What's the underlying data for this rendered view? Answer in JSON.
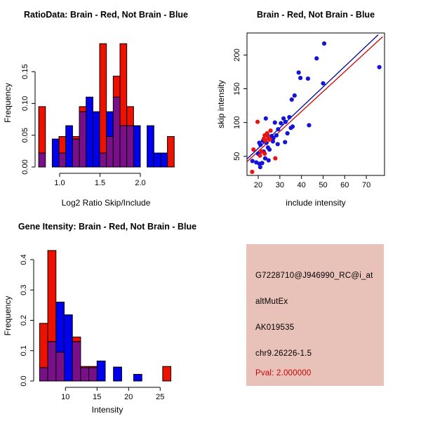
{
  "colors": {
    "red": "#ee1100",
    "blue": "#0000ee",
    "overlap_purple": "#7a0f8a",
    "scatter_red_point": "#e81414",
    "scatter_blue_point": "#1414d8",
    "fit_line_red": "#d40000",
    "fit_line_blue": "#0000a0",
    "axis": "#000000",
    "info_box_bg": "#e8c2b9",
    "pval_red": "#cc0000",
    "text": "#000000"
  },
  "chart_data": [
    {
      "id": "ratio-histogram",
      "type": "bar",
      "title": "RatioData: Brain - Red, Not Brain - Blue",
      "xlabel": "Log2 Ratio Skip/Include",
      "ylabel": "Frequency",
      "legend_note": "Brain histogram red, Not Brain histogram blue, overlap purple",
      "xlim": [
        0.713,
        2.435
      ],
      "ylim": [
        0,
        0.202
      ],
      "grid": false,
      "xticks": [
        {
          "v": 1.0,
          "label": "1.0"
        },
        {
          "v": 1.5,
          "label": "1.5"
        },
        {
          "v": 2.0,
          "label": "2.0"
        }
      ],
      "yticks": [
        {
          "v": 0.0,
          "label": "0.00"
        },
        {
          "v": 0.05,
          "label": "0.05"
        },
        {
          "v": 0.1,
          "label": "0.10"
        },
        {
          "v": 0.15,
          "label": "0.15"
        }
      ],
      "bin_width": 0.084,
      "bars": [
        {
          "x0": 0.74,
          "red": 0.095,
          "blue": 0.022
        },
        {
          "x0": 0.824,
          "red": 0,
          "blue": 0
        },
        {
          "x0": 0.908,
          "red": 0,
          "blue": 0.044
        },
        {
          "x0": 0.992,
          "red": 0.048,
          "blue": 0.022
        },
        {
          "x0": 1.076,
          "red": 0,
          "blue": 0.065
        },
        {
          "x0": 1.16,
          "red": 0.048,
          "blue": 0.044
        },
        {
          "x0": 1.244,
          "red": 0.095,
          "blue": 0.087
        },
        {
          "x0": 1.328,
          "red": 0,
          "blue": 0.11
        },
        {
          "x0": 1.412,
          "red": 0,
          "blue": 0.087
        },
        {
          "x0": 1.496,
          "red": 0.194,
          "blue": 0.022
        },
        {
          "x0": 1.58,
          "red": 0.048,
          "blue": 0.087
        },
        {
          "x0": 1.664,
          "red": 0.143,
          "blue": 0.11
        },
        {
          "x0": 1.748,
          "red": 0.194,
          "blue": 0.065
        },
        {
          "x0": 1.832,
          "red": 0.095,
          "blue": 0.065
        },
        {
          "x0": 1.916,
          "red": 0,
          "blue": 0.065
        },
        {
          "x0": 2.0,
          "red": 0,
          "blue": 0
        },
        {
          "x0": 2.084,
          "red": 0,
          "blue": 0.065
        },
        {
          "x0": 2.168,
          "red": 0,
          "blue": 0.022
        },
        {
          "x0": 2.252,
          "red": 0,
          "blue": 0.022
        },
        {
          "x0": 2.336,
          "red": 0.048,
          "blue": 0
        }
      ]
    },
    {
      "id": "scatter",
      "type": "scatter",
      "title": "Brain - Red, Not Brain - Blue",
      "xlabel": "include intensity",
      "ylabel": "skip intensity",
      "xlim": [
        14.8,
        78.4
      ],
      "ylim": [
        21.7,
        232.6
      ],
      "grid": false,
      "box": true,
      "xticks": [
        {
          "v": 20,
          "label": "20"
        },
        {
          "v": 30,
          "label": "30"
        },
        {
          "v": 40,
          "label": "40"
        },
        {
          "v": 50,
          "label": "50"
        },
        {
          "v": 60,
          "label": "60"
        },
        {
          "v": 70,
          "label": "70"
        }
      ],
      "yticks": [
        {
          "v": 50,
          "label": "50"
        },
        {
          "v": 100,
          "label": "100"
        },
        {
          "v": 150,
          "label": "150"
        },
        {
          "v": 200,
          "label": "200"
        }
      ],
      "series": [
        {
          "name": "Not Brain",
          "color_key": "scatter_blue_point",
          "points": [
            [
              50.5,
              217
            ],
            [
              47,
              195
            ],
            [
              76,
              182
            ],
            [
              38.7,
              174
            ],
            [
              39.5,
              166
            ],
            [
              43,
              165
            ],
            [
              50,
              158
            ],
            [
              36.8,
              140
            ],
            [
              35.5,
              134
            ],
            [
              34.4,
              108
            ],
            [
              31.7,
              106
            ],
            [
              23.5,
              106
            ],
            [
              43.5,
              96
            ],
            [
              27.7,
              100
            ],
            [
              30.5,
              99
            ],
            [
              32.6,
              101
            ],
            [
              35.9,
              94
            ],
            [
              35.1,
              92
            ],
            [
              29.2,
              90
            ],
            [
              33.5,
              84
            ],
            [
              26.2,
              80
            ],
            [
              28.4,
              81
            ],
            [
              24.2,
              82
            ],
            [
              27,
              77
            ],
            [
              26.8,
              72
            ],
            [
              22.2,
              73
            ],
            [
              23.8,
              70
            ],
            [
              20.5,
              70
            ],
            [
              21,
              67
            ],
            [
              29,
              68
            ],
            [
              32.4,
              71
            ],
            [
              24.5,
              63
            ],
            [
              25.2,
              60
            ],
            [
              22.5,
              57
            ],
            [
              19.9,
              54
            ],
            [
              23.2,
              47
            ],
            [
              17.3,
              43
            ],
            [
              19.1,
              41
            ],
            [
              20.5,
              39
            ],
            [
              20.9,
              34
            ],
            [
              21.8,
              40
            ],
            [
              24.8,
              44
            ]
          ]
        },
        {
          "name": "Brain",
          "color_key": "scatter_red_point",
          "points": [
            [
              19.7,
              101
            ],
            [
              25.7,
              88
            ],
            [
              24.1,
              84
            ],
            [
              23,
              81
            ],
            [
              24.6,
              78
            ],
            [
              25.4,
              75
            ],
            [
              22.6,
              76
            ],
            [
              23.4,
              73
            ],
            [
              21.5,
              57
            ],
            [
              17.8,
              60
            ],
            [
              23,
              54
            ],
            [
              20.8,
              51
            ],
            [
              27.9,
              47
            ],
            [
              17.2,
              27
            ]
          ]
        }
      ],
      "fit_lines": [
        {
          "name": "not-brain-fit",
          "color_key": "fit_line_blue",
          "x1": 14.8,
          "y1": 46,
          "x2": 75.5,
          "y2": 230
        },
        {
          "name": "brain-fit",
          "color_key": "fit_line_red",
          "x1": 14.8,
          "y1": 42,
          "x2": 77.5,
          "y2": 227
        }
      ]
    },
    {
      "id": "gene-histogram",
      "type": "bar",
      "title": "Gene Itensity: Brain - Red, Not Brain - Blue",
      "xlabel": "Intensity",
      "ylabel": "Frequency",
      "legend_note": "Brain histogram red, Not Brain histogram blue, overlap purple",
      "xlim": [
        5.19,
        28.08
      ],
      "ylim": [
        0,
        0.43
      ],
      "grid": false,
      "xticks": [
        {
          "v": 10,
          "label": "10"
        },
        {
          "v": 15,
          "label": "15"
        },
        {
          "v": 20,
          "label": "20"
        },
        {
          "v": 25,
          "label": "25"
        }
      ],
      "yticks": [
        {
          "v": 0.0,
          "label": "0.0"
        },
        {
          "v": 0.1,
          "label": "0.1"
        },
        {
          "v": 0.2,
          "label": "0.2"
        },
        {
          "v": 0.3,
          "label": "0.3"
        },
        {
          "v": 0.4,
          "label": "0.4"
        }
      ],
      "bars": [
        {
          "x0": 5.9,
          "x1": 7.2,
          "red": 0.19,
          "blue": 0.044
        },
        {
          "x0": 7.2,
          "x1": 8.5,
          "red": 0.43,
          "blue": 0.13
        },
        {
          "x0": 8.5,
          "x1": 9.8,
          "red": 0.095,
          "blue": 0.26
        },
        {
          "x0": 9.8,
          "x1": 11.1,
          "red": 0,
          "blue": 0.218
        },
        {
          "x0": 11.1,
          "x1": 12.4,
          "red": 0.145,
          "blue": 0.13
        },
        {
          "x0": 12.4,
          "x1": 13.7,
          "red": 0.048,
          "blue": 0.044
        },
        {
          "x0": 13.7,
          "x1": 15.0,
          "red": 0.048,
          "blue": 0.044
        },
        {
          "x0": 15.0,
          "x1": 16.3,
          "red": 0,
          "blue": 0.066
        },
        {
          "x0": 17.6,
          "x1": 18.9,
          "red": 0,
          "blue": 0.046
        },
        {
          "x0": 20.8,
          "x1": 22.1,
          "red": 0,
          "blue": 0.022
        },
        {
          "x0": 25.4,
          "x1": 26.7,
          "red": 0.048,
          "blue": 0
        }
      ]
    }
  ],
  "info_box": {
    "lines": [
      {
        "text": "G7228710@J946990_RC@i_at",
        "color": "black"
      },
      {
        "text": "altMutEx",
        "color": "black"
      },
      {
        "text": "AK019535",
        "color": "black"
      },
      {
        "text": "chr9.26226-1.5",
        "color": "black"
      },
      {
        "text": "Pval: 2.000000",
        "color": "red"
      }
    ]
  }
}
